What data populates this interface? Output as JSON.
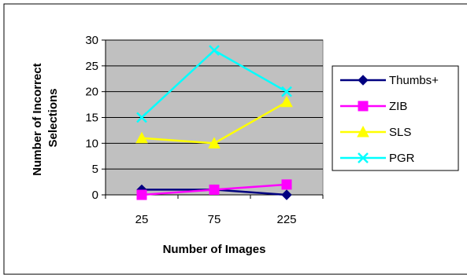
{
  "chart_data": {
    "type": "line",
    "title": "",
    "xlabel": "Number of Images",
    "ylabel": "Number of Incorrect Selections",
    "ylabel_lines": [
      "Number of Incorrect",
      "Selections"
    ],
    "categories": [
      "25",
      "75",
      "225"
    ],
    "ylim": [
      0,
      30
    ],
    "yticks": [
      "0",
      "5",
      "10",
      "15",
      "20",
      "25",
      "30"
    ],
    "grid": "horizontal",
    "legend_position": "right",
    "plot_background": "#c0c0c0",
    "series": [
      {
        "name": "Thumbs+",
        "values": [
          1,
          1,
          0
        ],
        "color": "#000080",
        "marker": "diamond"
      },
      {
        "name": "ZIB",
        "values": [
          0,
          1,
          2
        ],
        "color": "#ff00ff",
        "marker": "square"
      },
      {
        "name": "SLS",
        "values": [
          11,
          10,
          18
        ],
        "color": "#ffff00",
        "marker": "triangle"
      },
      {
        "name": "PGR",
        "values": [
          15,
          28,
          20
        ],
        "color": "#00ffff",
        "marker": "x"
      }
    ]
  }
}
